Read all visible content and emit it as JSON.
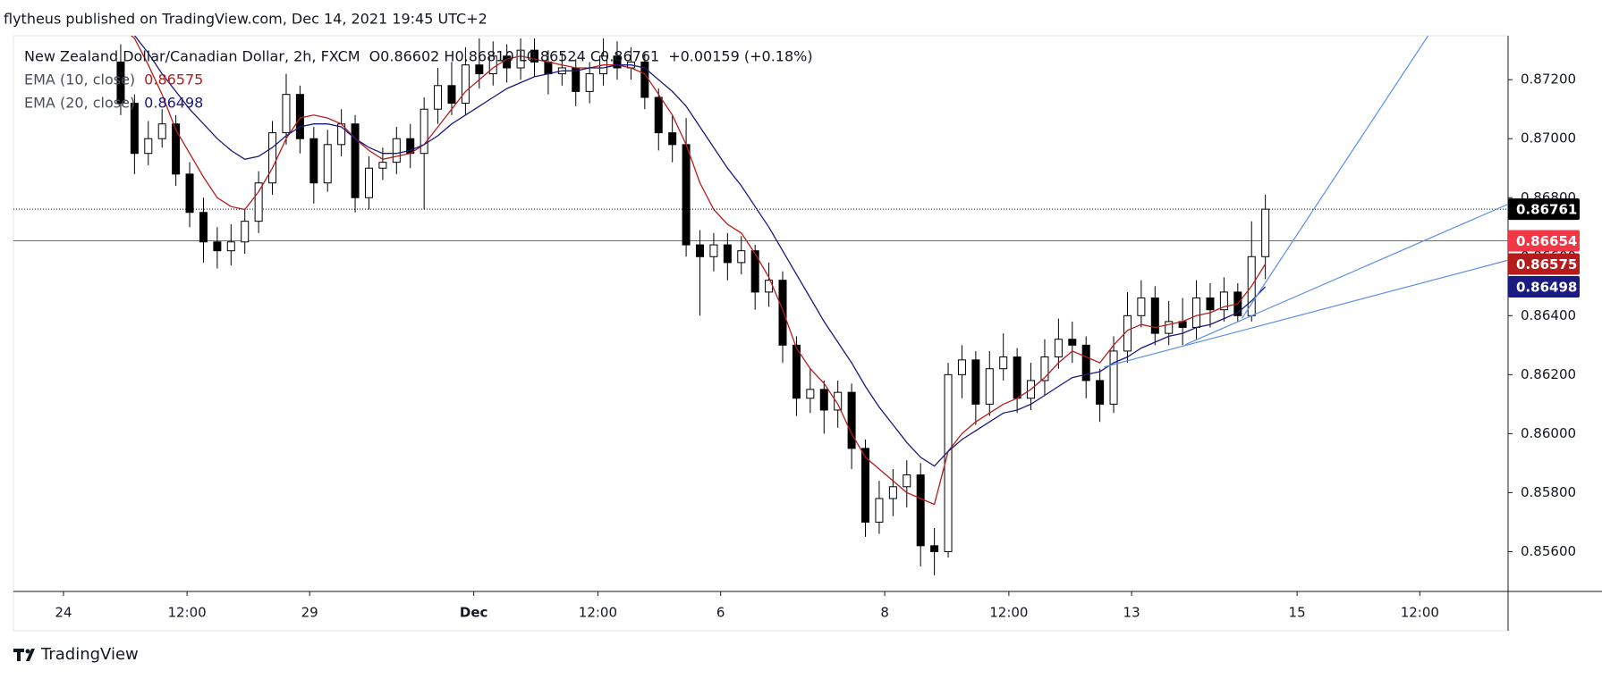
{
  "header": "flytheus published on TradingView.com, Dec 14, 2021 19:45 UTC+2",
  "footer": "TradingView",
  "chart_data": {
    "type": "candlestick",
    "title": "New Zealand Dollar/Canadian Dollar, 2h, FXCM",
    "ohlc_text": "O0.86602 H0.86810 L0.86524 C0.86761",
    "change_text": "+0.00159 (+0.18%)",
    "up_color": "#ffffff",
    "down_color": "#000000",
    "edge_color": "#000000",
    "open": [
      0.8726,
      0.8712,
      0.8695,
      0.87,
      0.8705,
      0.8688,
      0.8675,
      0.8665,
      0.8662,
      0.8665,
      0.8672,
      0.8685,
      0.8702,
      0.8715,
      0.87,
      0.8685,
      0.8698,
      0.8705,
      0.868,
      0.869,
      0.8692,
      0.87,
      0.8695,
      0.871,
      0.8718,
      0.8712,
      0.8725,
      0.8722,
      0.8728,
      0.8724,
      0.873,
      0.8726,
      0.8722,
      0.8724,
      0.8716,
      0.8722,
      0.8728,
      0.8724,
      0.8726,
      0.8714,
      0.8702,
      0.8698,
      0.8664,
      0.866,
      0.8664,
      0.8658,
      0.8662,
      0.8648,
      0.8652,
      0.863,
      0.8612,
      0.8615,
      0.8608,
      0.8614,
      0.8595,
      0.857,
      0.8578,
      0.8582,
      0.8586,
      0.8562,
      0.856,
      0.862,
      0.8625,
      0.861,
      0.8622,
      0.8626,
      0.8612,
      0.8618,
      0.8626,
      0.8632,
      0.863,
      0.8618,
      0.861,
      0.8628,
      0.864,
      0.8646,
      0.8634,
      0.8638,
      0.8636,
      0.8646,
      0.8642,
      0.8648,
      0.864,
      0.866
    ],
    "high": [
      0.8732,
      0.8715,
      0.8706,
      0.871,
      0.8708,
      0.8692,
      0.868,
      0.867,
      0.8671,
      0.8676,
      0.8689,
      0.8706,
      0.8722,
      0.8718,
      0.8704,
      0.8703,
      0.871,
      0.8708,
      0.8694,
      0.8697,
      0.8704,
      0.8705,
      0.8714,
      0.8724,
      0.8726,
      0.8731,
      0.8734,
      0.8733,
      0.8732,
      0.8734,
      0.8734,
      0.873,
      0.8729,
      0.8727,
      0.8726,
      0.8734,
      0.8733,
      0.8731,
      0.8729,
      0.8717,
      0.8708,
      0.8707,
      0.8669,
      0.8668,
      0.8668,
      0.8667,
      0.8664,
      0.8658,
      0.8655,
      0.8633,
      0.8622,
      0.8618,
      0.8618,
      0.8617,
      0.8598,
      0.8584,
      0.8588,
      0.8591,
      0.859,
      0.8568,
      0.8624,
      0.863,
      0.8628,
      0.8628,
      0.8634,
      0.8629,
      0.8624,
      0.8632,
      0.8639,
      0.8638,
      0.8633,
      0.8622,
      0.8633,
      0.8648,
      0.8652,
      0.865,
      0.8645,
      0.8646,
      0.8652,
      0.8651,
      0.8653,
      0.8651,
      0.8672,
      0.8681
    ],
    "low": [
      0.8708,
      0.8688,
      0.8691,
      0.8697,
      0.8684,
      0.867,
      0.8658,
      0.8656,
      0.8657,
      0.8661,
      0.8668,
      0.8681,
      0.8698,
      0.8695,
      0.8678,
      0.8682,
      0.8694,
      0.8675,
      0.8676,
      0.8686,
      0.8688,
      0.869,
      0.8676,
      0.8705,
      0.8708,
      0.8708,
      0.8717,
      0.8718,
      0.8719,
      0.872,
      0.8721,
      0.8715,
      0.8718,
      0.8711,
      0.8712,
      0.8718,
      0.872,
      0.872,
      0.871,
      0.8696,
      0.8692,
      0.866,
      0.864,
      0.8655,
      0.8652,
      0.8654,
      0.8642,
      0.8643,
      0.8624,
      0.8606,
      0.8607,
      0.86,
      0.8602,
      0.8588,
      0.8565,
      0.8566,
      0.8572,
      0.8575,
      0.8555,
      0.8552,
      0.8558,
      0.8612,
      0.8603,
      0.8606,
      0.8618,
      0.8607,
      0.8608,
      0.8613,
      0.8622,
      0.8624,
      0.8612,
      0.8604,
      0.8607,
      0.8624,
      0.8636,
      0.863,
      0.863,
      0.863,
      0.8632,
      0.8636,
      0.8638,
      0.8638,
      0.8638,
      0.86524
    ],
    "close": [
      0.8712,
      0.8695,
      0.87,
      0.8705,
      0.8688,
      0.8675,
      0.8665,
      0.8662,
      0.8665,
      0.8672,
      0.8685,
      0.8702,
      0.8715,
      0.87,
      0.8685,
      0.8698,
      0.8705,
      0.868,
      0.869,
      0.8692,
      0.87,
      0.8695,
      0.871,
      0.8718,
      0.8712,
      0.8725,
      0.8722,
      0.8728,
      0.8724,
      0.873,
      0.8726,
      0.8722,
      0.8724,
      0.8716,
      0.8722,
      0.8728,
      0.8724,
      0.8726,
      0.8714,
      0.8702,
      0.8698,
      0.8664,
      0.866,
      0.8664,
      0.8658,
      0.8662,
      0.8648,
      0.8652,
      0.863,
      0.8612,
      0.8615,
      0.8608,
      0.8614,
      0.8595,
      0.857,
      0.8578,
      0.8582,
      0.8586,
      0.8562,
      0.856,
      0.862,
      0.8625,
      0.861,
      0.8622,
      0.8626,
      0.8612,
      0.8618,
      0.8626,
      0.8632,
      0.863,
      0.8618,
      0.861,
      0.8628,
      0.864,
      0.8646,
      0.8634,
      0.8638,
      0.8636,
      0.8646,
      0.8642,
      0.8648,
      0.864,
      0.866,
      0.86761
    ],
    "series": [
      {
        "name": "EMA (10, close)",
        "value_label": "0.86575",
        "color": "#b71c1c",
        "values": [
          0.8738,
          0.8734,
          0.8725,
          0.8715,
          0.8703,
          0.8695,
          0.8687,
          0.868,
          0.8677,
          0.8676,
          0.8682,
          0.869,
          0.87,
          0.8707,
          0.8708,
          0.8707,
          0.8705,
          0.87,
          0.8696,
          0.8693,
          0.8694,
          0.8695,
          0.8698,
          0.8704,
          0.871,
          0.8716,
          0.872,
          0.8724,
          0.8727,
          0.8728,
          0.8727,
          0.8726,
          0.8725,
          0.8724,
          0.8724,
          0.8725,
          0.8725,
          0.8724,
          0.8722,
          0.8715,
          0.8708,
          0.8698,
          0.8685,
          0.8676,
          0.8671,
          0.8668,
          0.8661,
          0.8653,
          0.8642,
          0.8629,
          0.8622,
          0.8617,
          0.861,
          0.86,
          0.8592,
          0.8588,
          0.8584,
          0.858,
          0.8578,
          0.8576,
          0.8594,
          0.86,
          0.8604,
          0.8607,
          0.861,
          0.8612,
          0.8615,
          0.8619,
          0.8624,
          0.8628,
          0.8626,
          0.8624,
          0.863,
          0.8635,
          0.8637,
          0.8636,
          0.8637,
          0.8638,
          0.864,
          0.8641,
          0.8643,
          0.8644,
          0.865,
          0.86575
        ]
      },
      {
        "name": "EMA (20, close)",
        "value_label": "0.86498",
        "color": "#1a1a80",
        "values": [
          0.874,
          0.8735,
          0.8729,
          0.8722,
          0.8716,
          0.871,
          0.8705,
          0.87,
          0.8696,
          0.8693,
          0.8694,
          0.8697,
          0.8701,
          0.8704,
          0.8705,
          0.8705,
          0.8704,
          0.87,
          0.8697,
          0.8695,
          0.8695,
          0.8696,
          0.8698,
          0.8701,
          0.8705,
          0.8708,
          0.8711,
          0.8714,
          0.8717,
          0.8719,
          0.8721,
          0.8722,
          0.8723,
          0.8723,
          0.8724,
          0.8724,
          0.8725,
          0.8725,
          0.8724,
          0.872,
          0.8716,
          0.8711,
          0.8704,
          0.8697,
          0.869,
          0.8684,
          0.8677,
          0.867,
          0.8662,
          0.8654,
          0.8646,
          0.8638,
          0.8631,
          0.8624,
          0.8616,
          0.8609,
          0.8603,
          0.8597,
          0.8592,
          0.8589,
          0.8594,
          0.8598,
          0.8601,
          0.8604,
          0.8607,
          0.8608,
          0.861,
          0.8613,
          0.8616,
          0.8619,
          0.862,
          0.8621,
          0.8624,
          0.8626,
          0.8629,
          0.8631,
          0.8633,
          0.8634,
          0.8636,
          0.8637,
          0.8639,
          0.8641,
          0.8645,
          0.86498
        ]
      }
    ],
    "trend_color": "#5b8fe8",
    "trend_lines": [
      {
        "x": [
          71.3,
          100.6
        ],
        "y": [
          0.86226,
          0.86588
        ]
      },
      {
        "x": [
          77.2,
          100.6
        ],
        "y": [
          0.86302,
          0.86778
        ]
      },
      {
        "x": [
          81.3,
          94.8
        ],
        "y": [
          0.86391,
          0.87349
        ]
      }
    ],
    "price_labels": [
      {
        "value": 0.86761,
        "color": "#000000",
        "line": "dotted"
      },
      {
        "value": 0.86654,
        "color": "#f23645",
        "line": "solid"
      },
      {
        "value": 0.86575,
        "color": "#b71c1c"
      },
      {
        "value": 0.86498,
        "color": "#1a1a80"
      }
    ],
    "xlim": [
      -7.78,
      100.6
    ],
    "xticks": [
      {
        "value": -4.15,
        "label": "24"
      },
      {
        "value": 4.81,
        "label": "12:00"
      },
      {
        "value": 13.7,
        "label": "29"
      },
      {
        "value": 25.6,
        "label": "Dec"
      },
      {
        "value": 34.6,
        "label": "12:00"
      },
      {
        "value": 43.5,
        "label": "6"
      },
      {
        "value": 55.4,
        "label": "8"
      },
      {
        "value": 64.4,
        "label": "12:00"
      },
      {
        "value": 73.3,
        "label": "13"
      },
      {
        "value": 85.3,
        "label": "15"
      },
      {
        "value": 94.2,
        "label": "12:00"
      }
    ],
    "ylim": [
      0.85465,
      0.87349
    ],
    "yticks": [
      {
        "value": 0.856,
        "label": "0.85600"
      },
      {
        "value": 0.858,
        "label": "0.85800"
      },
      {
        "value": 0.86,
        "label": "0.86000"
      },
      {
        "value": 0.862,
        "label": "0.86200"
      },
      {
        "value": 0.864,
        "label": "0.86400"
      },
      {
        "value": 0.866,
        "label": "0.86600"
      },
      {
        "value": 0.868,
        "label": "0.86800"
      },
      {
        "value": 0.87,
        "label": "0.87000"
      },
      {
        "value": 0.872,
        "label": "0.87200"
      }
    ]
  }
}
